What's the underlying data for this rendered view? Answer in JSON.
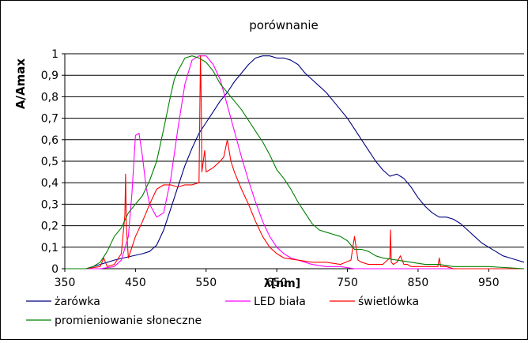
{
  "chart_data": {
    "type": "line",
    "title": "porównanie",
    "xlabel": "λ[nm]",
    "ylabel": "A/Amax",
    "xlim": [
      350,
      1000
    ],
    "ylim": [
      0,
      1
    ],
    "xticks": [
      350,
      450,
      550,
      650,
      750,
      850,
      950
    ],
    "yticks": [
      0,
      0.1,
      0.2,
      0.3,
      0.4,
      0.5,
      0.6,
      0.7,
      0.8,
      0.9,
      1
    ],
    "ytick_labels": [
      "0",
      "0,1",
      "0,2",
      "0,3",
      "0,4",
      "0,5",
      "0,6",
      "0,7",
      "0,8",
      "0,9",
      "1"
    ],
    "grid": "horizontal",
    "legend_position": "bottom",
    "series": [
      {
        "name": "żarówka",
        "color": "#000080",
        "x": [
          350,
          380,
          400,
          420,
          440,
          460,
          470,
          480,
          490,
          500,
          510,
          520,
          530,
          540,
          550,
          560,
          570,
          580,
          590,
          600,
          610,
          620,
          630,
          640,
          650,
          660,
          670,
          680,
          690,
          700,
          710,
          720,
          730,
          740,
          750,
          760,
          770,
          780,
          790,
          800,
          810,
          820,
          830,
          840,
          850,
          860,
          870,
          880,
          890,
          900,
          910,
          920,
          930,
          940,
          950,
          960,
          970,
          980,
          990,
          1000
        ],
        "y": [
          0.0,
          0.0,
          0.02,
          0.04,
          0.055,
          0.07,
          0.08,
          0.11,
          0.18,
          0.28,
          0.38,
          0.48,
          0.56,
          0.63,
          0.68,
          0.73,
          0.78,
          0.82,
          0.87,
          0.91,
          0.95,
          0.98,
          0.99,
          0.99,
          0.98,
          0.98,
          0.97,
          0.95,
          0.91,
          0.88,
          0.85,
          0.82,
          0.78,
          0.74,
          0.7,
          0.65,
          0.6,
          0.55,
          0.5,
          0.46,
          0.43,
          0.44,
          0.42,
          0.38,
          0.33,
          0.29,
          0.26,
          0.24,
          0.24,
          0.23,
          0.21,
          0.18,
          0.15,
          0.12,
          0.1,
          0.08,
          0.06,
          0.05,
          0.04,
          0.03
        ]
      },
      {
        "name": "LED biała",
        "color": "#ff00ff",
        "x": [
          350,
          400,
          420,
          430,
          440,
          445,
          450,
          455,
          460,
          465,
          470,
          480,
          490,
          500,
          510,
          520,
          530,
          540,
          550,
          560,
          570,
          580,
          590,
          600,
          610,
          620,
          630,
          640,
          650,
          660,
          670,
          680,
          690,
          700,
          720,
          740,
          760,
          780,
          800,
          850,
          900,
          950,
          1000
        ],
        "y": [
          0.0,
          0.0,
          0.01,
          0.04,
          0.15,
          0.35,
          0.62,
          0.63,
          0.52,
          0.38,
          0.3,
          0.24,
          0.26,
          0.42,
          0.65,
          0.86,
          0.97,
          0.99,
          0.99,
          0.95,
          0.88,
          0.76,
          0.64,
          0.52,
          0.41,
          0.31,
          0.22,
          0.15,
          0.1,
          0.07,
          0.05,
          0.04,
          0.03,
          0.02,
          0.01,
          0.01,
          0.0,
          0.0,
          0.0,
          0.0,
          0.0,
          0.0,
          0.0
        ]
      },
      {
        "name": "świetlówka",
        "color": "#ff0000",
        "x": [
          350,
          380,
          400,
          405,
          410,
          420,
          430,
          435,
          436,
          437,
          440,
          445,
          450,
          460,
          470,
          480,
          490,
          500,
          510,
          520,
          530,
          540,
          542,
          543,
          544,
          548,
          550,
          560,
          570,
          575,
          580,
          585,
          590,
          600,
          610,
          620,
          630,
          640,
          650,
          660,
          680,
          700,
          720,
          740,
          755,
          760,
          765,
          770,
          780,
          800,
          810,
          811,
          812,
          815,
          820,
          825,
          830,
          835,
          840,
          860,
          878,
          880,
          882,
          890,
          900,
          950,
          1000
        ],
        "y": [
          0.0,
          0.0,
          0.01,
          0.05,
          0.01,
          0.02,
          0.07,
          0.25,
          0.44,
          0.2,
          0.05,
          0.1,
          0.15,
          0.22,
          0.3,
          0.37,
          0.39,
          0.39,
          0.38,
          0.39,
          0.39,
          0.4,
          0.99,
          0.8,
          0.45,
          0.55,
          0.45,
          0.47,
          0.5,
          0.52,
          0.6,
          0.5,
          0.45,
          0.37,
          0.3,
          0.22,
          0.15,
          0.1,
          0.07,
          0.05,
          0.04,
          0.03,
          0.03,
          0.02,
          0.04,
          0.15,
          0.04,
          0.03,
          0.02,
          0.02,
          0.05,
          0.18,
          0.03,
          0.02,
          0.03,
          0.06,
          0.02,
          0.02,
          0.01,
          0.01,
          0.01,
          0.05,
          0.01,
          0.01,
          0.0,
          0.0,
          0.0
        ]
      },
      {
        "name": "promieniowanie słoneczne",
        "color": "#008000",
        "x": [
          350,
          380,
          390,
          400,
          410,
          420,
          425,
          430,
          440,
          450,
          460,
          470,
          480,
          490,
          500,
          505,
          510,
          520,
          530,
          540,
          550,
          560,
          570,
          580,
          590,
          600,
          610,
          620,
          630,
          640,
          650,
          660,
          670,
          680,
          690,
          700,
          710,
          720,
          730,
          740,
          750,
          760,
          770,
          780,
          790,
          800,
          820,
          840,
          860,
          880,
          900,
          950,
          1000
        ],
        "y": [
          0.0,
          0.0,
          0.01,
          0.03,
          0.08,
          0.15,
          0.17,
          0.19,
          0.26,
          0.3,
          0.34,
          0.41,
          0.5,
          0.65,
          0.81,
          0.88,
          0.92,
          0.98,
          0.99,
          0.98,
          0.96,
          0.92,
          0.86,
          0.82,
          0.78,
          0.74,
          0.69,
          0.64,
          0.59,
          0.53,
          0.46,
          0.42,
          0.37,
          0.31,
          0.26,
          0.21,
          0.18,
          0.17,
          0.16,
          0.15,
          0.13,
          0.09,
          0.09,
          0.08,
          0.06,
          0.05,
          0.04,
          0.03,
          0.02,
          0.02,
          0.01,
          0.01,
          0.0
        ]
      }
    ]
  }
}
